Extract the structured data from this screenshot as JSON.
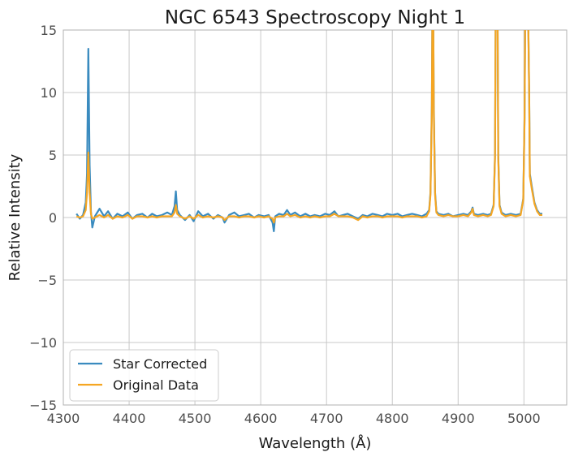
{
  "chart_data": {
    "type": "line",
    "title": "NGC 6543 Spectroscopy Night 1",
    "xlabel": "Wavelength (Å)",
    "ylabel": "Relative Intensity",
    "xlim": [
      4300,
      5065
    ],
    "ylim": [
      -15,
      15
    ],
    "xticks": [
      4300,
      4400,
      4500,
      4600,
      4700,
      4800,
      4900,
      5000
    ],
    "yticks": [
      -15,
      -10,
      -5,
      0,
      5,
      10,
      15
    ],
    "ytick_labels": [
      "−15",
      "−10",
      "−5",
      "0",
      "5",
      "10",
      "15"
    ],
    "grid": true,
    "legend_position": "lower-left",
    "series": [
      {
        "name": "Star Corrected",
        "color": "#3a8bbf",
        "points": [
          [
            4320,
            0.3
          ],
          [
            4325,
            -0.1
          ],
          [
            4330,
            0.2
          ],
          [
            4334,
            1.2
          ],
          [
            4336,
            3.5
          ],
          [
            4338,
            13.5
          ],
          [
            4340,
            4.2
          ],
          [
            4342,
            0.5
          ],
          [
            4344,
            -0.8
          ],
          [
            4348,
            0.1
          ],
          [
            4355,
            0.7
          ],
          [
            4362,
            0.1
          ],
          [
            4368,
            0.5
          ],
          [
            4375,
            -0.1
          ],
          [
            4382,
            0.3
          ],
          [
            4390,
            0.1
          ],
          [
            4398,
            0.4
          ],
          [
            4405,
            -0.1
          ],
          [
            4412,
            0.2
          ],
          [
            4420,
            0.3
          ],
          [
            4428,
            0.0
          ],
          [
            4435,
            0.3
          ],
          [
            4442,
            0.1
          ],
          [
            4450,
            0.2
          ],
          [
            4458,
            0.4
          ],
          [
            4465,
            0.2
          ],
          [
            4469,
            0.9
          ],
          [
            4471,
            2.1
          ],
          [
            4473,
            0.6
          ],
          [
            4477,
            0.2
          ],
          [
            4485,
            -0.2
          ],
          [
            4492,
            0.2
          ],
          [
            4498,
            -0.3
          ],
          [
            4505,
            0.5
          ],
          [
            4512,
            0.1
          ],
          [
            4520,
            0.3
          ],
          [
            4528,
            -0.1
          ],
          [
            4535,
            0.2
          ],
          [
            4542,
            0.0
          ],
          [
            4545,
            -0.4
          ],
          [
            4552,
            0.2
          ],
          [
            4560,
            0.4
          ],
          [
            4567,
            0.1
          ],
          [
            4575,
            0.2
          ],
          [
            4582,
            0.3
          ],
          [
            4590,
            0.0
          ],
          [
            4597,
            0.2
          ],
          [
            4605,
            0.1
          ],
          [
            4612,
            0.2
          ],
          [
            4618,
            -0.4
          ],
          [
            4620,
            -1.1
          ],
          [
            4622,
            0.1
          ],
          [
            4628,
            0.3
          ],
          [
            4635,
            0.2
          ],
          [
            4640,
            0.6
          ],
          [
            4645,
            0.2
          ],
          [
            4652,
            0.4
          ],
          [
            4660,
            0.1
          ],
          [
            4668,
            0.3
          ],
          [
            4675,
            0.1
          ],
          [
            4682,
            0.2
          ],
          [
            4690,
            0.1
          ],
          [
            4698,
            0.3
          ],
          [
            4705,
            0.2
          ],
          [
            4712,
            0.5
          ],
          [
            4718,
            0.1
          ],
          [
            4725,
            0.2
          ],
          [
            4732,
            0.3
          ],
          [
            4740,
            0.1
          ],
          [
            4748,
            -0.1
          ],
          [
            4755,
            0.2
          ],
          [
            4762,
            0.1
          ],
          [
            4770,
            0.3
          ],
          [
            4778,
            0.2
          ],
          [
            4785,
            0.1
          ],
          [
            4792,
            0.3
          ],
          [
            4800,
            0.2
          ],
          [
            4808,
            0.3
          ],
          [
            4815,
            0.1
          ],
          [
            4822,
            0.2
          ],
          [
            4830,
            0.3
          ],
          [
            4838,
            0.2
          ],
          [
            4845,
            0.1
          ],
          [
            4852,
            0.3
          ],
          [
            4856,
            0.6
          ],
          [
            4858,
            2.0
          ],
          [
            4860,
            9.0
          ],
          [
            4861,
            18.0
          ],
          [
            4862,
            18.0
          ],
          [
            4863,
            9.0
          ],
          [
            4865,
            2.0
          ],
          [
            4867,
            0.5
          ],
          [
            4870,
            0.3
          ],
          [
            4878,
            0.2
          ],
          [
            4885,
            0.3
          ],
          [
            4892,
            0.1
          ],
          [
            4900,
            0.2
          ],
          [
            4908,
            0.3
          ],
          [
            4915,
            0.2
          ],
          [
            4920,
            0.5
          ],
          [
            4922,
            0.8
          ],
          [
            4924,
            0.3
          ],
          [
            4930,
            0.2
          ],
          [
            4938,
            0.3
          ],
          [
            4945,
            0.2
          ],
          [
            4950,
            0.3
          ],
          [
            4954,
            1.0
          ],
          [
            4956,
            5.0
          ],
          [
            4957,
            16.0
          ],
          [
            4959,
            18.0
          ],
          [
            4960,
            16.0
          ],
          [
            4961,
            5.0
          ],
          [
            4963,
            1.0
          ],
          [
            4966,
            0.4
          ],
          [
            4972,
            0.2
          ],
          [
            4980,
            0.3
          ],
          [
            4988,
            0.2
          ],
          [
            4995,
            0.3
          ],
          [
            4999,
            1.5
          ],
          [
            5001,
            8.0
          ],
          [
            5002,
            16.0
          ],
          [
            5004,
            18.0
          ],
          [
            5006,
            18.0
          ],
          [
            5008,
            10.0
          ],
          [
            5009,
            3.5
          ],
          [
            5012,
            2.5
          ],
          [
            5016,
            1.2
          ],
          [
            5020,
            0.6
          ],
          [
            5024,
            0.3
          ],
          [
            5028,
            0.3
          ]
        ]
      },
      {
        "name": "Original Data",
        "color": "#f5a623",
        "points": [
          [
            4320,
            0.1
          ],
          [
            4325,
            0.0
          ],
          [
            4330,
            0.1
          ],
          [
            4334,
            0.6
          ],
          [
            4336,
            2.0
          ],
          [
            4338,
            5.2
          ],
          [
            4340,
            2.0
          ],
          [
            4342,
            0.3
          ],
          [
            4344,
            -0.1
          ],
          [
            4348,
            0.0
          ],
          [
            4355,
            0.2
          ],
          [
            4362,
            0.0
          ],
          [
            4368,
            0.2
          ],
          [
            4375,
            -0.1
          ],
          [
            4382,
            0.1
          ],
          [
            4390,
            0.0
          ],
          [
            4398,
            0.2
          ],
          [
            4405,
            -0.1
          ],
          [
            4412,
            0.1
          ],
          [
            4420,
            0.1
          ],
          [
            4428,
            0.0
          ],
          [
            4435,
            0.1
          ],
          [
            4442,
            0.0
          ],
          [
            4450,
            0.1
          ],
          [
            4458,
            0.1
          ],
          [
            4465,
            0.1
          ],
          [
            4469,
            0.4
          ],
          [
            4471,
            1.0
          ],
          [
            4473,
            0.3
          ],
          [
            4477,
            0.1
          ],
          [
            4485,
            -0.1
          ],
          [
            4492,
            0.1
          ],
          [
            4498,
            -0.1
          ],
          [
            4505,
            0.2
          ],
          [
            4512,
            0.0
          ],
          [
            4520,
            0.1
          ],
          [
            4528,
            0.0
          ],
          [
            4535,
            0.1
          ],
          [
            4542,
            0.0
          ],
          [
            4545,
            -0.2
          ],
          [
            4552,
            0.1
          ],
          [
            4560,
            0.1
          ],
          [
            4567,
            0.0
          ],
          [
            4575,
            0.1
          ],
          [
            4582,
            0.1
          ],
          [
            4590,
            0.0
          ],
          [
            4597,
            0.1
          ],
          [
            4605,
            0.0
          ],
          [
            4612,
            0.1
          ],
          [
            4618,
            -0.1
          ],
          [
            4620,
            -0.4
          ],
          [
            4622,
            0.0
          ],
          [
            4628,
            0.1
          ],
          [
            4635,
            0.1
          ],
          [
            4640,
            0.3
          ],
          [
            4645,
            0.1
          ],
          [
            4652,
            0.2
          ],
          [
            4660,
            0.0
          ],
          [
            4668,
            0.1
          ],
          [
            4675,
            0.0
          ],
          [
            4682,
            0.1
          ],
          [
            4690,
            0.0
          ],
          [
            4698,
            0.1
          ],
          [
            4705,
            0.1
          ],
          [
            4712,
            0.3
          ],
          [
            4718,
            0.1
          ],
          [
            4725,
            0.1
          ],
          [
            4732,
            0.1
          ],
          [
            4740,
            0.0
          ],
          [
            4748,
            -0.2
          ],
          [
            4755,
            0.1
          ],
          [
            4762,
            0.0
          ],
          [
            4770,
            0.1
          ],
          [
            4778,
            0.1
          ],
          [
            4785,
            0.0
          ],
          [
            4792,
            0.1
          ],
          [
            4800,
            0.1
          ],
          [
            4808,
            0.1
          ],
          [
            4815,
            0.0
          ],
          [
            4822,
            0.1
          ],
          [
            4830,
            0.1
          ],
          [
            4838,
            0.1
          ],
          [
            4845,
            0.0
          ],
          [
            4852,
            0.1
          ],
          [
            4856,
            0.5
          ],
          [
            4858,
            1.8
          ],
          [
            4860,
            8.5
          ],
          [
            4861,
            18.0
          ],
          [
            4862,
            18.0
          ],
          [
            4863,
            8.5
          ],
          [
            4865,
            1.8
          ],
          [
            4867,
            0.4
          ],
          [
            4870,
            0.2
          ],
          [
            4878,
            0.1
          ],
          [
            4885,
            0.2
          ],
          [
            4892,
            0.1
          ],
          [
            4900,
            0.1
          ],
          [
            4908,
            0.2
          ],
          [
            4915,
            0.1
          ],
          [
            4920,
            0.4
          ],
          [
            4922,
            0.7
          ],
          [
            4924,
            0.2
          ],
          [
            4930,
            0.1
          ],
          [
            4938,
            0.2
          ],
          [
            4945,
            0.1
          ],
          [
            4950,
            0.2
          ],
          [
            4954,
            0.9
          ],
          [
            4956,
            4.8
          ],
          [
            4957,
            16.0
          ],
          [
            4959,
            18.0
          ],
          [
            4960,
            16.0
          ],
          [
            4961,
            4.8
          ],
          [
            4963,
            0.9
          ],
          [
            4966,
            0.3
          ],
          [
            4972,
            0.1
          ],
          [
            4980,
            0.2
          ],
          [
            4988,
            0.1
          ],
          [
            4995,
            0.2
          ],
          [
            4999,
            1.4
          ],
          [
            5001,
            7.8
          ],
          [
            5002,
            16.0
          ],
          [
            5004,
            18.0
          ],
          [
            5006,
            18.0
          ],
          [
            5008,
            9.8
          ],
          [
            5009,
            3.3
          ],
          [
            5012,
            2.3
          ],
          [
            5016,
            1.1
          ],
          [
            5020,
            0.5
          ],
          [
            5024,
            0.2
          ],
          [
            5028,
            0.2
          ]
        ]
      }
    ]
  }
}
